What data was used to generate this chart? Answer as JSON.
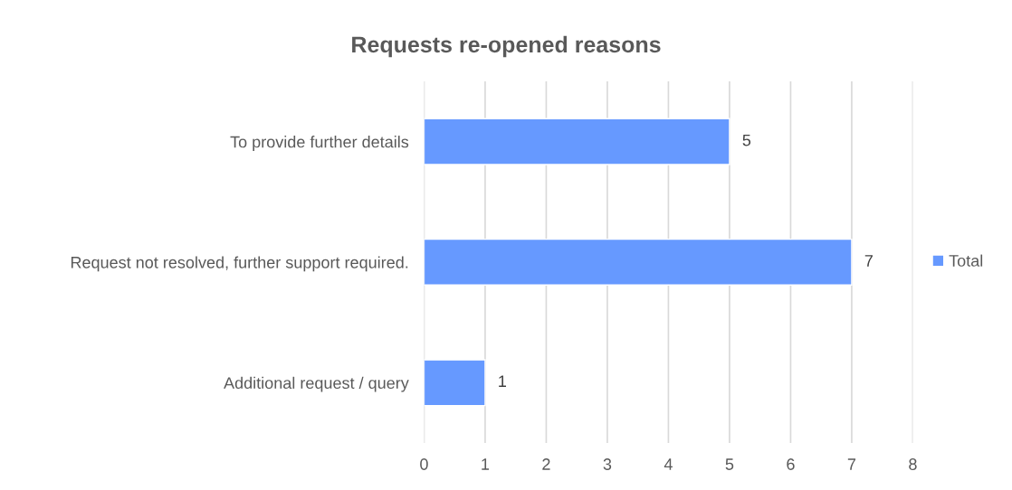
{
  "chart_data": {
    "type": "bar",
    "orientation": "horizontal",
    "title": "Requests re-opened reasons",
    "categories": [
      "To provide further details",
      "Request not resolved, further support required.",
      "Additional request / query"
    ],
    "series": [
      {
        "name": "Total",
        "color": "#6699ff",
        "values": [
          5,
          7,
          1
        ]
      }
    ],
    "xlim": [
      0,
      8
    ],
    "xticks": [
      0,
      1,
      2,
      3,
      4,
      5,
      6,
      7,
      8
    ],
    "grid": "x",
    "legend": "right",
    "data_labels": true
  }
}
